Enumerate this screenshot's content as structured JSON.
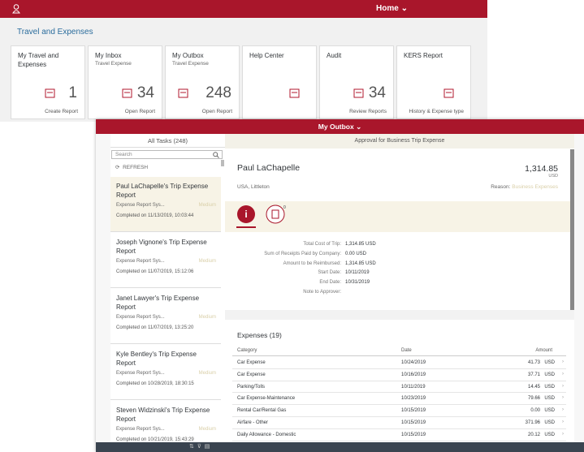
{
  "shell": {
    "home": "Home"
  },
  "launchpad": {
    "group_title": "Travel and Expenses",
    "tiles": [
      {
        "title": "My Travel and Expenses",
        "number": 1,
        "footer": "Create Report"
      },
      {
        "title": "My Inbox",
        "subtitle": "Travel Expense",
        "number": 34,
        "footer": "Open Report"
      },
      {
        "title": "My Outbox",
        "subtitle": "Travel Expense",
        "number": 248,
        "footer": "Open Report"
      },
      {
        "title": "Help Center"
      },
      {
        "title": "Audit",
        "number": 34,
        "footer": "Review Reports"
      },
      {
        "title": "KERS Report",
        "footer": "History & Expense type"
      }
    ]
  },
  "outbox": {
    "title": "My Outbox",
    "list": {
      "header": "All Tasks (248)",
      "search_placeholder": "Search",
      "refresh": "REFRESH",
      "items": [
        {
          "title": "Paul LaChapelle's Trip Expense Report",
          "type": "Expense Report Sys...",
          "priority": "Medium",
          "completed": "Completed on 11/13/2019, 10:03:44"
        },
        {
          "title": "Joseph Vignone's Trip Expense Report",
          "type": "Expense Report Sys...",
          "priority": "Medium",
          "completed": "Completed on 11/07/2019, 15:12:06"
        },
        {
          "title": "Janet Lawyer's Trip Expense Report",
          "type": "Expense Report Sys...",
          "priority": "Medium",
          "completed": "Completed on 11/07/2019, 13:25:20"
        },
        {
          "title": "Kyle Bentley's Trip Expense Report",
          "type": "Expense Report Sys...",
          "priority": "Medium",
          "completed": "Completed on 10/28/2019, 18:30:15"
        },
        {
          "title": "Steven Widzinski's Trip Expense Report",
          "type": "Expense Report Sys...",
          "priority": "Medium",
          "completed": "Completed on 10/21/2019, 15:43:29"
        }
      ]
    },
    "detail": {
      "header": "Approval for Business Trip Expense",
      "name": "Paul LaChapelle",
      "amount": "1,314.85",
      "currency": "USD",
      "location": "USA, Littleton",
      "reason_label": "Reason:",
      "reason": "Business Expenses",
      "attachments_count": "0",
      "fields": [
        {
          "label": "Total Cost of Trip:",
          "value": "1,314.85 USD"
        },
        {
          "label": "Sum of Receipts Paid by Company:",
          "value": "0.00 USD"
        },
        {
          "label": "Amount to be Reimbursed:",
          "value": "1,314.85 USD"
        },
        {
          "label": "Start Date:",
          "value": "10/11/2019"
        },
        {
          "label": "End Date:",
          "value": "10/31/2019"
        },
        {
          "label": "Note to Approver:"
        }
      ],
      "expenses": {
        "title": "Expenses (19)",
        "columns": [
          "Category",
          "Date",
          "Amount"
        ],
        "rows": [
          [
            "Car Expense",
            "10/24/2019",
            "41.73",
            "USD"
          ],
          [
            "Car Expense",
            "10/16/2019",
            "37.71",
            "USD"
          ],
          [
            "Parking/Tolls",
            "10/11/2019",
            "14.45",
            "USD"
          ],
          [
            "Car Expense-Maintenance",
            "10/23/2019",
            "79.66",
            "USD"
          ],
          [
            "Rental Car/Rental Gas",
            "10/15/2019",
            "0.00",
            "USD"
          ],
          [
            "Airfare - Other",
            "10/15/2019",
            "371.96",
            "USD"
          ],
          [
            "Daily Allowance - Domestic",
            "10/15/2019",
            "20.12",
            "USD"
          ]
        ]
      }
    }
  }
}
